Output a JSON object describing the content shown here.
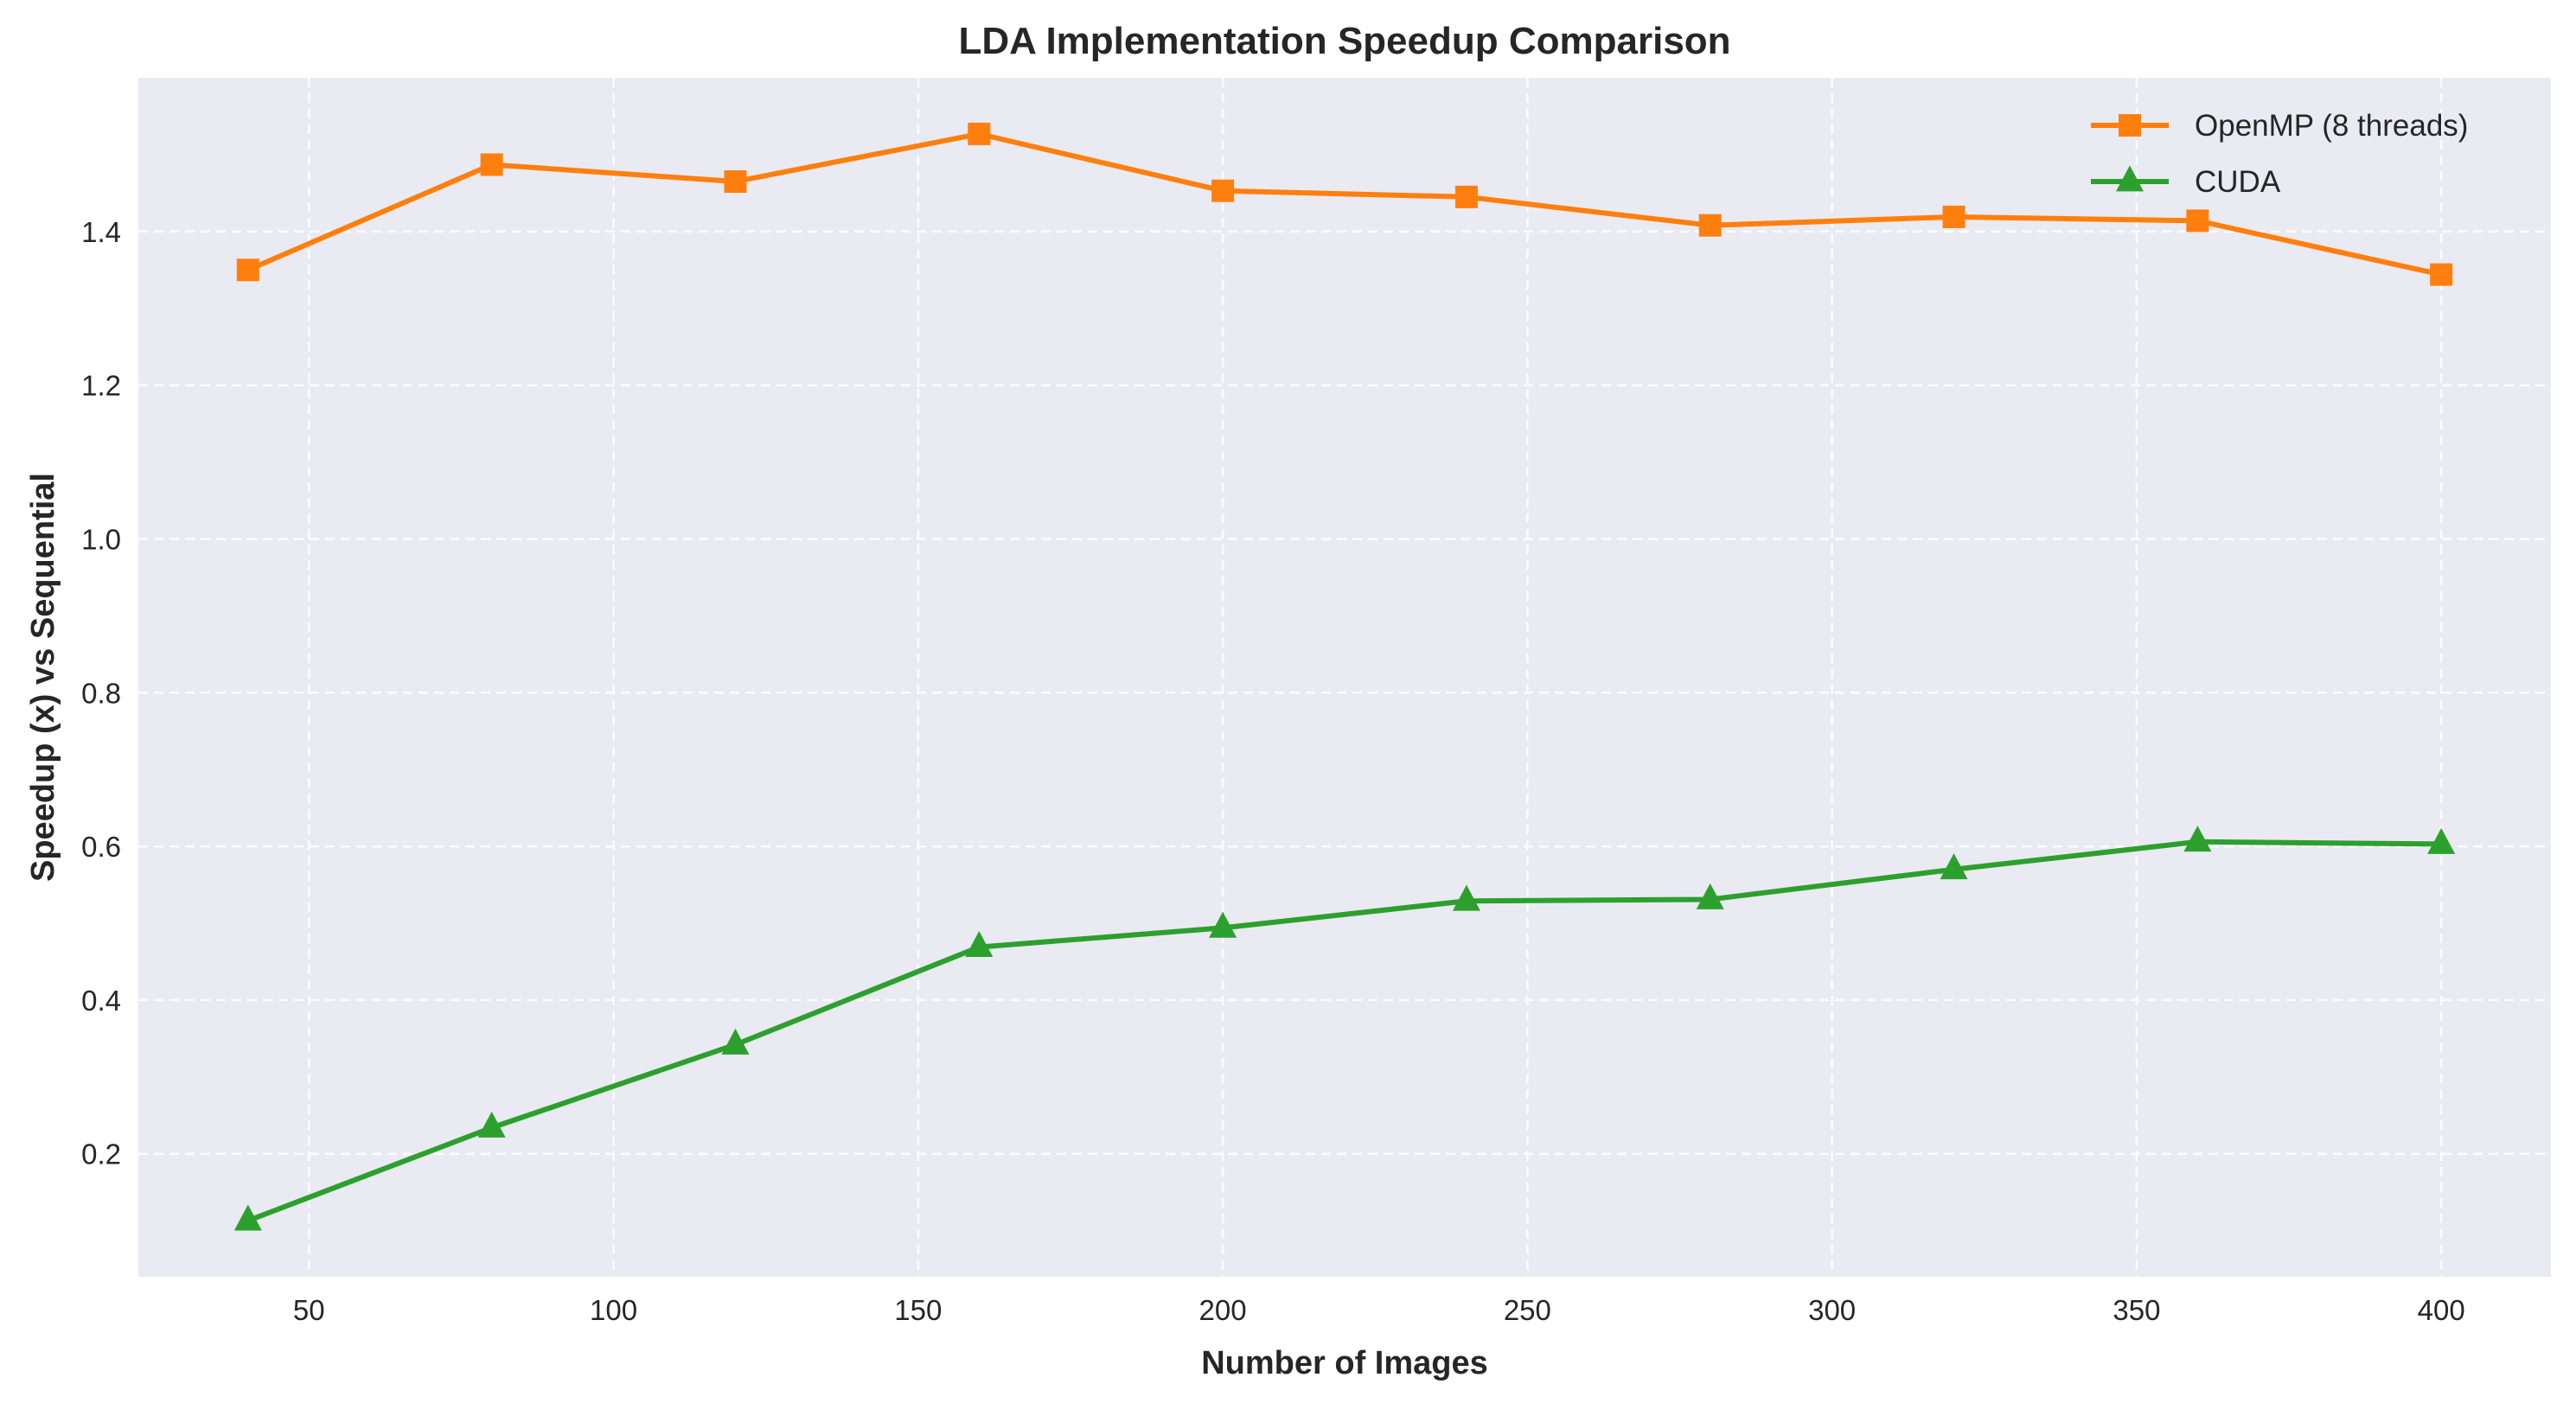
{
  "chart_data": {
    "type": "line",
    "title": "LDA Implementation Speedup Comparison",
    "xlabel": "Number of Images",
    "ylabel": "Speedup (x) vs Sequential",
    "x": [
      40,
      80,
      120,
      160,
      200,
      240,
      280,
      320,
      360,
      400
    ],
    "series": [
      {
        "name": "OpenMP (8 threads)",
        "color": "#ff7f0e",
        "marker": "square",
        "values": [
          1.35,
          1.487,
          1.465,
          1.527,
          1.453,
          1.445,
          1.408,
          1.419,
          1.414,
          1.344
        ]
      },
      {
        "name": "CUDA",
        "color": "#2ca02c",
        "marker": "triangle",
        "values": [
          0.113,
          0.234,
          0.342,
          0.469,
          0.494,
          0.529,
          0.531,
          0.57,
          0.606,
          0.603
        ]
      }
    ],
    "xlim": [
      22,
      418
    ],
    "ylim": [
      0.04,
      1.6
    ],
    "xticks": [
      50,
      100,
      150,
      200,
      250,
      300,
      350,
      400
    ],
    "yticks": [
      0.2,
      0.4,
      0.6,
      0.8,
      1.0,
      1.2,
      1.4
    ],
    "grid": true,
    "legend_position": "top-right"
  }
}
